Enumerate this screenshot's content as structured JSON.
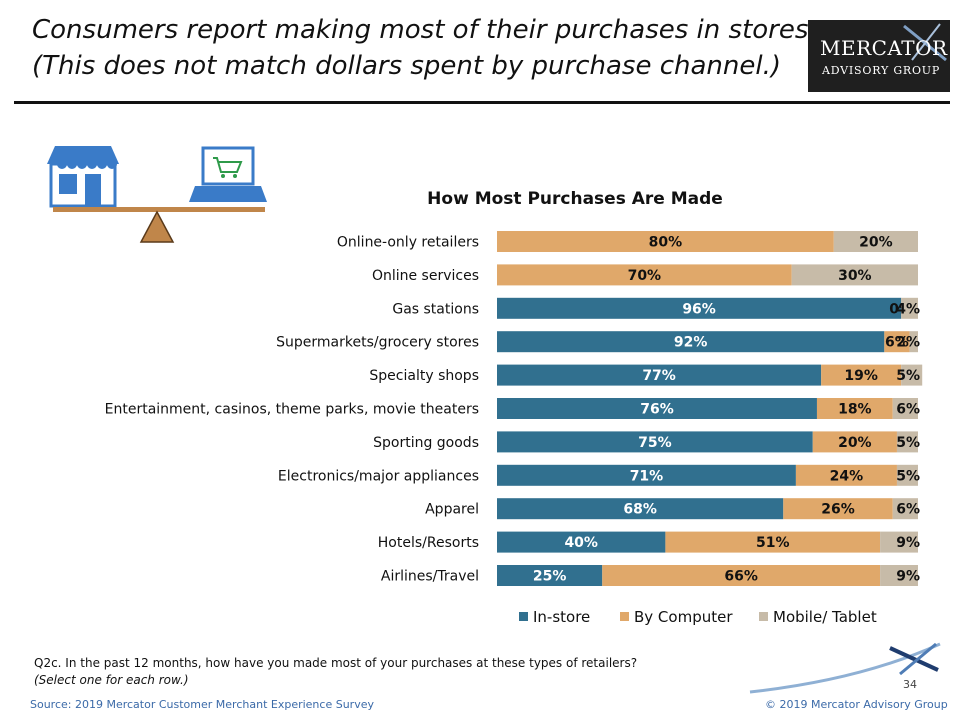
{
  "slide": {
    "title_line1": "Consumers report making most of their purchases in stores.",
    "title_line2": "(This does not match dollars spent by purchase channel.)",
    "logo_line1": "MERCATOR",
    "logo_line2": "ADVISORY GROUP",
    "footnote_q": "Q2c. In the past 12 months, how have you made most of your purchases at these types of retailers?",
    "footnote_select": "(Select one for each row.)",
    "source": "Source: 2019 Mercator Customer Merchant Experience Survey",
    "copyright": "© 2019 Mercator Advisory Group",
    "page_number": "34"
  },
  "icons": [
    "store-icon",
    "laptop-cart-icon",
    "balance-scale-icon"
  ],
  "colors": {
    "in_store": "#31708f",
    "by_computer": "#e0a86a",
    "mobile_tablet": "#c7bba8",
    "logo_bg": "#1f1f1f",
    "icon_blue": "#3a7bc8",
    "scale_brown": "#c0864a"
  },
  "chart_data": {
    "type": "bar",
    "orientation": "horizontal",
    "stacked": true,
    "title": "How Most Purchases Are Made",
    "categories": [
      "Online-only retailers",
      "Online services",
      "Gas stations",
      "Supermarkets/grocery stores",
      "Specialty shops",
      "Entertainment, casinos, theme parks, movie theaters",
      "Sporting goods",
      "Electronics/major appliances",
      "Apparel",
      "Hotels/Resorts",
      "Airlines/Travel"
    ],
    "series": [
      {
        "name": "In-store",
        "values": [
          0,
          0,
          96,
          92,
          77,
          76,
          75,
          71,
          68,
          40,
          25
        ]
      },
      {
        "name": "By Computer",
        "values": [
          80,
          70,
          0,
          6,
          19,
          18,
          20,
          24,
          26,
          51,
          66
        ]
      },
      {
        "name": "Mobile/ Tablet",
        "values": [
          20,
          30,
          4,
          2,
          5,
          6,
          5,
          5,
          6,
          9,
          9
        ]
      }
    ],
    "xlim": [
      0,
      100
    ],
    "legend_position": "bottom",
    "grid": false
  }
}
